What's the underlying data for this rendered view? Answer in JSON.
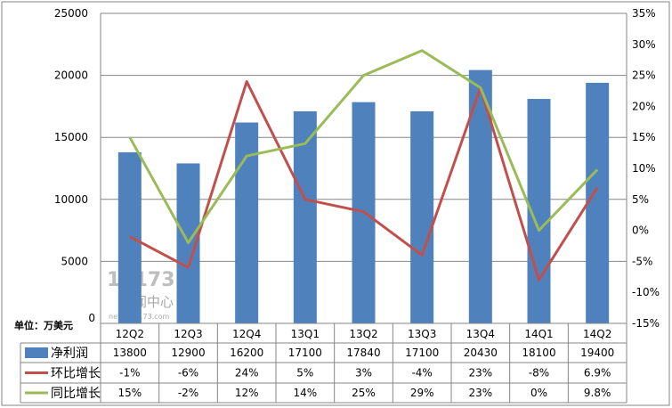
{
  "chart_data": {
    "type": "bar+line",
    "categories": [
      "12Q2",
      "12Q3",
      "12Q4",
      "13Q1",
      "13Q2",
      "13Q3",
      "13Q4",
      "14Q1",
      "14Q2"
    ],
    "unit_label": "单位：万美元",
    "left_axis": {
      "ylim": [
        0,
        25000
      ],
      "ticks": [
        0,
        5000,
        10000,
        15000,
        20000,
        25000
      ]
    },
    "right_axis": {
      "ylim": [
        -15,
        35
      ],
      "ticks": [
        "-15%",
        "-10%",
        "-5%",
        "0%",
        "5%",
        "10%",
        "15%",
        "20%",
        "25%",
        "30%",
        "35%"
      ],
      "tick_values": [
        -15,
        -10,
        -5,
        0,
        5,
        10,
        15,
        20,
        25,
        30,
        35
      ]
    },
    "grid": true,
    "legend_placement": "data-table",
    "series": [
      {
        "name": "净利润",
        "type": "bar",
        "axis": "left",
        "color": "#4F81BD",
        "values": [
          13800,
          12900,
          16200,
          17100,
          17840,
          17100,
          20430,
          18100,
          19400
        ],
        "labels": [
          "13800",
          "12900",
          "16200",
          "17100",
          "17840",
          "17100",
          "20430",
          "18100",
          "19400"
        ]
      },
      {
        "name": "环比增长",
        "type": "line",
        "axis": "right",
        "color": "#C0504D",
        "values": [
          -1,
          -6,
          24,
          5,
          3,
          -4,
          23,
          -8,
          6.9
        ],
        "labels": [
          "-1%",
          "-6%",
          "24%",
          "5%",
          "3%",
          "-4%",
          "23%",
          "-8%",
          "6.9%"
        ]
      },
      {
        "name": "同比增长",
        "type": "line",
        "axis": "right",
        "color": "#9BBB59",
        "values": [
          15,
          -2,
          12,
          14,
          25,
          29,
          23,
          0,
          9.8
        ],
        "labels": [
          "15%",
          "-2%",
          "12%",
          "14%",
          "25%",
          "29%",
          "23%",
          "0%",
          "9.8%"
        ]
      }
    ]
  },
  "watermark": {
    "logo": "17173",
    "title": "新闻中心",
    "url": "news.17173.com"
  }
}
